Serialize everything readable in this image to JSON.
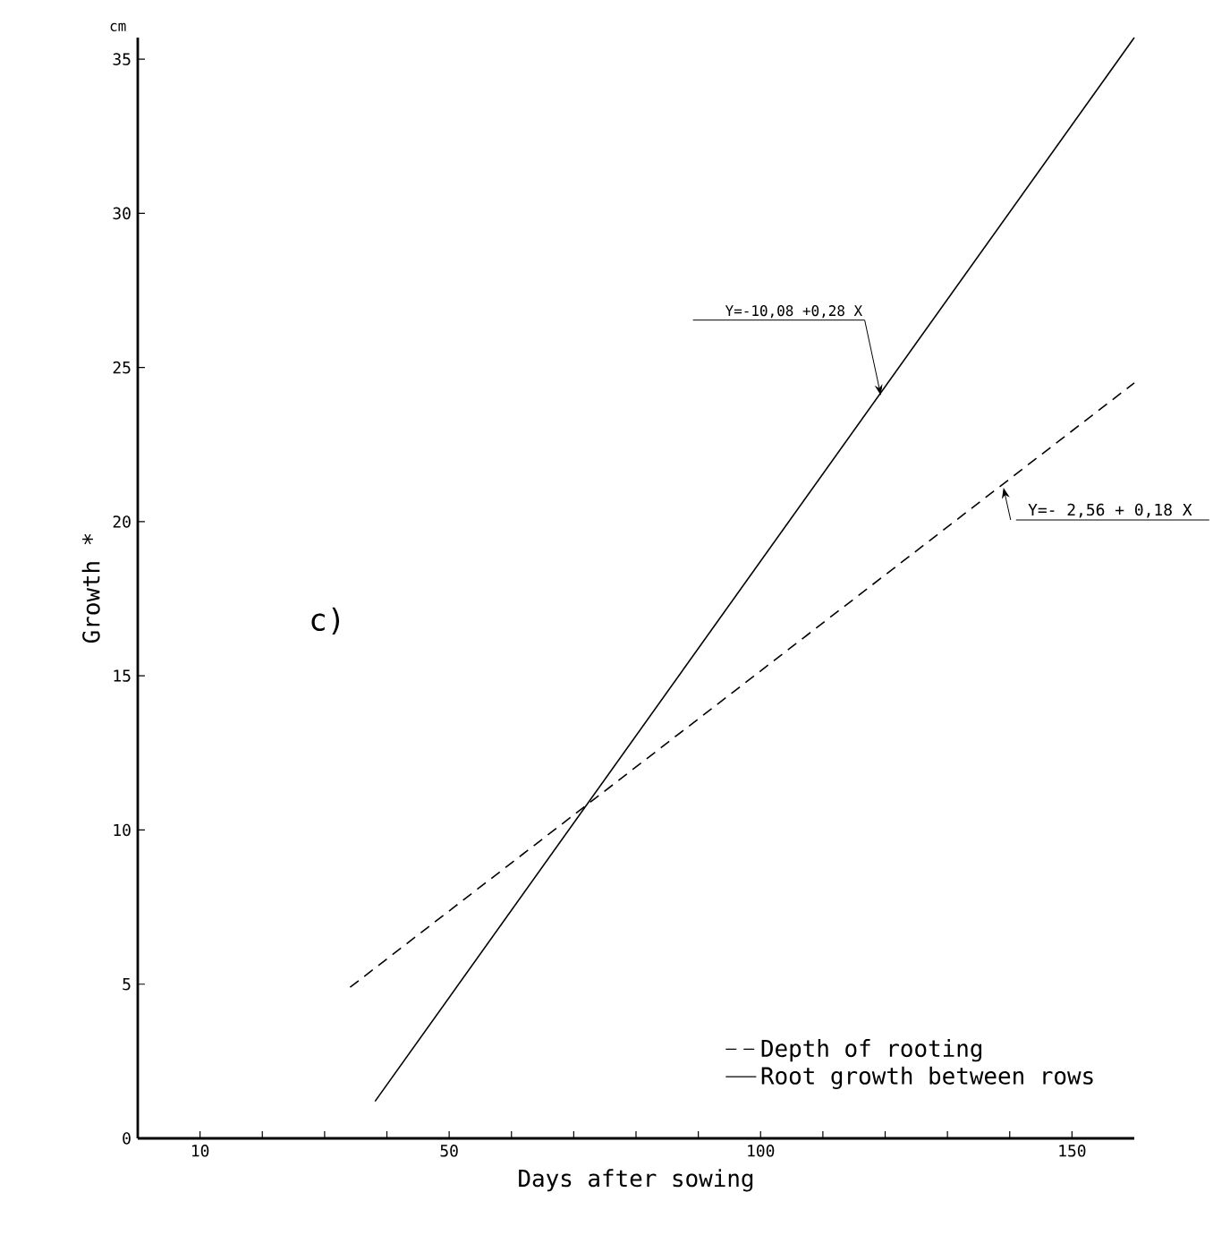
{
  "chart_data": {
    "type": "line",
    "xlabel": "Days after sowing",
    "ylabel": "Growth *",
    "xlim": [
      0,
      160
    ],
    "ylim": [
      0,
      35.7
    ],
    "xticks": [
      10,
      {
        "value": 20,
        "label": null
      },
      {
        "value": 30,
        "label": null
      },
      {
        "value": 40,
        "label": null
      },
      50,
      {
        "value": 60,
        "label": null
      },
      {
        "value": 70,
        "label": null
      },
      {
        "value": 80,
        "label": null
      },
      {
        "value": 90,
        "label": null
      },
      100,
      {
        "value": 110,
        "label": null
      },
      {
        "value": 120,
        "label": null
      },
      {
        "value": 130,
        "label": null
      },
      {
        "value": 140,
        "label": null
      },
      150
    ],
    "yticks": [
      0,
      5,
      10,
      15,
      20,
      25,
      30,
      35
    ],
    "series": [
      {
        "name": "Depth of rooting",
        "color": "#000000",
        "line_style": "dashed",
        "x": [
          34.1,
          160
        ],
        "values": [
          4.9,
          24.5
        ]
      },
      {
        "name": "Root growth between rows",
        "color": "#000000",
        "line_style": "solid",
        "x": [
          38.1,
          160
        ],
        "values": [
          1.2,
          35.7
        ]
      }
    ],
    "annotations": [
      {
        "text": "Y=-10,08 +0,28 X",
        "x": 119.3,
        "y": 24.1
      },
      {
        "text": "Y=- 2,56 + 0,18 X",
        "x": 139,
        "y": 21.1
      },
      "c)",
      "cm"
    ],
    "legend": "bottom right",
    "grid": false
  }
}
